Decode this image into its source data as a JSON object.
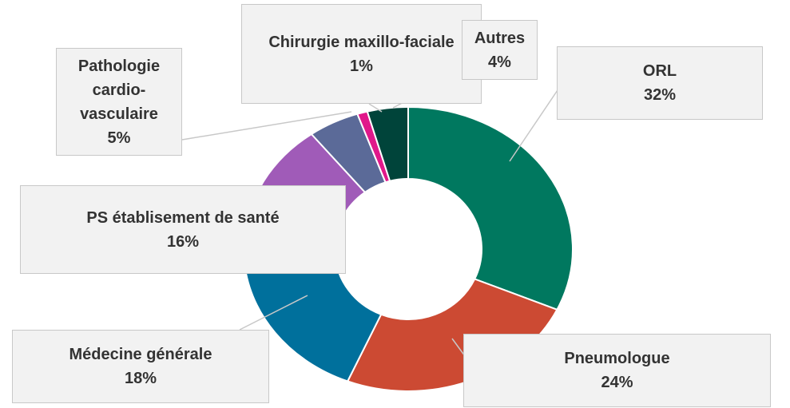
{
  "chart_data": {
    "type": "donut",
    "categories": [
      "ORL",
      "Pneumologue",
      "Médecine générale",
      "PS établisement de santé",
      "Pathologie cardio-vasculaire",
      "Chirurgie maxillo-faciale",
      "Autres"
    ],
    "values": [
      32,
      24,
      18,
      16,
      5,
      1,
      4
    ],
    "value_labels": [
      "32%",
      "24%",
      "18%",
      "16%",
      "5%",
      "1%",
      "4%"
    ],
    "colors": [
      "#00785f",
      "#cc4a33",
      "#00709c",
      "#a05bb8",
      "#5b6a98",
      "#e0188a",
      "#00443a"
    ]
  }
}
